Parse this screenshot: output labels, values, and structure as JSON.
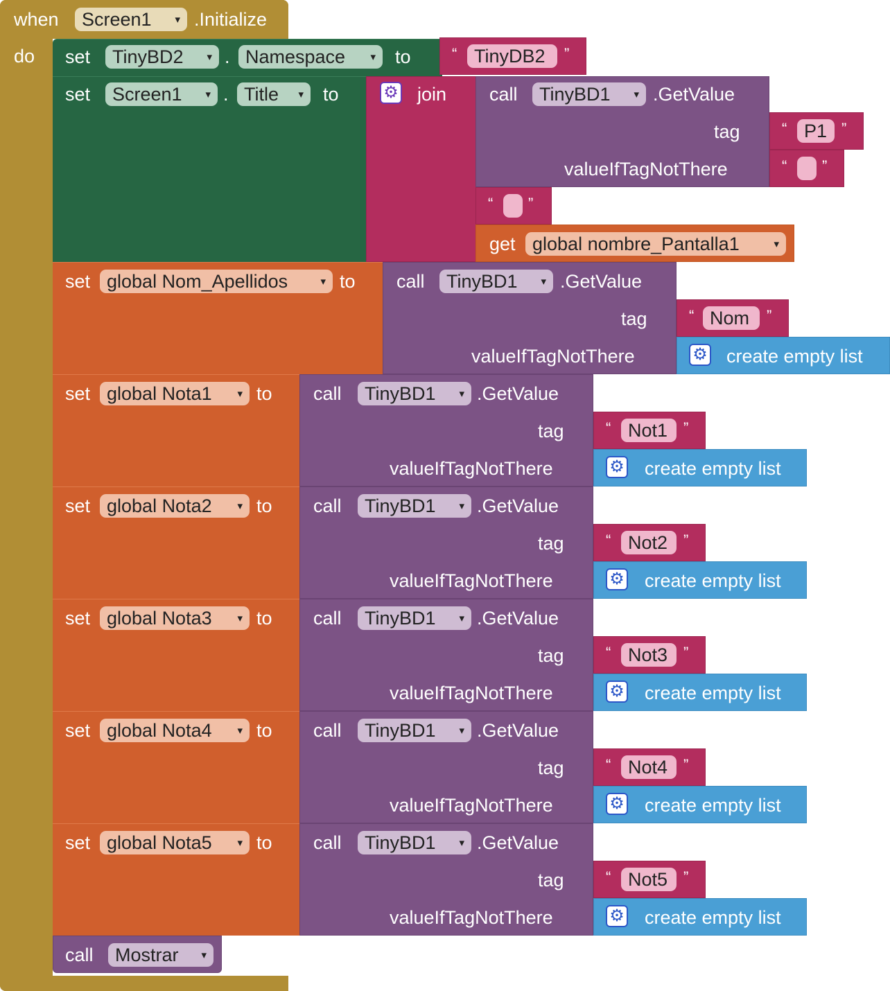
{
  "event": {
    "when": "when",
    "component": "Screen1",
    "event": ".Initialize",
    "do": "do"
  },
  "stmt1": {
    "set": "set",
    "component": "TinyBD2",
    "dot": ".",
    "property": "Namespace",
    "to": "to",
    "value": "TinyDB2"
  },
  "stmt2": {
    "set": "set",
    "component": "Screen1",
    "dot": ".",
    "property": "Title",
    "to": "to",
    "join": "join",
    "call": "call",
    "db": "TinyBD1",
    "method": ".GetValue",
    "tag": "tag",
    "tag_value": "P1",
    "vitn": "valueIfTagNotThere",
    "vitn_value": "",
    "empty_text": "",
    "get": "get",
    "global_var": "global nombre_Pantalla1"
  },
  "stmt3": {
    "set": "set",
    "var": "global Nom_Apellidos",
    "to": "to",
    "call": "call",
    "db": "TinyBD1",
    "method": ".GetValue",
    "tag": "tag",
    "tag_value": "Nom",
    "vitn": "valueIfTagNotThere",
    "list": "create empty list"
  },
  "notas": [
    {
      "set": "set",
      "var": "global Nota1",
      "to": "to",
      "call": "call",
      "db": "TinyBD1",
      "method": ".GetValue",
      "tag": "tag",
      "tag_value": "Not1",
      "vitn": "valueIfTagNotThere",
      "list": "create empty list"
    },
    {
      "set": "set",
      "var": "global Nota2",
      "to": "to",
      "call": "call",
      "db": "TinyBD1",
      "method": ".GetValue",
      "tag": "tag",
      "tag_value": "Not2",
      "vitn": "valueIfTagNotThere",
      "list": "create empty list"
    },
    {
      "set": "set",
      "var": "global Nota3",
      "to": "to",
      "call": "call",
      "db": "TinyBD1",
      "method": ".GetValue",
      "tag": "tag",
      "tag_value": "Not3",
      "vitn": "valueIfTagNotThere",
      "list": "create empty list"
    },
    {
      "set": "set",
      "var": "global Nota4",
      "to": "to",
      "call": "call",
      "db": "TinyBD1",
      "method": ".GetValue",
      "tag": "tag",
      "tag_value": "Not4",
      "vitn": "valueIfTagNotThere",
      "list": "create empty list"
    },
    {
      "set": "set",
      "var": "global Nota5",
      "to": "to",
      "call": "call",
      "db": "TinyBD1",
      "method": ".GetValue",
      "tag": "tag",
      "tag_value": "Not5",
      "vitn": "valueIfTagNotThere",
      "list": "create empty list"
    }
  ],
  "final_call": {
    "call": "call",
    "procedure": "Mostrar"
  },
  "glyphs": {
    "open_quote": "“",
    "close_quote": "”",
    "arrow": "▾",
    "gear": "⚙"
  },
  "colors": {
    "event": "#b18e35",
    "component_set": "#266643",
    "variable": "#d05f2d",
    "tinydb": "#7c5385",
    "text": "#b32d5e",
    "list": "#4a9fd5"
  }
}
